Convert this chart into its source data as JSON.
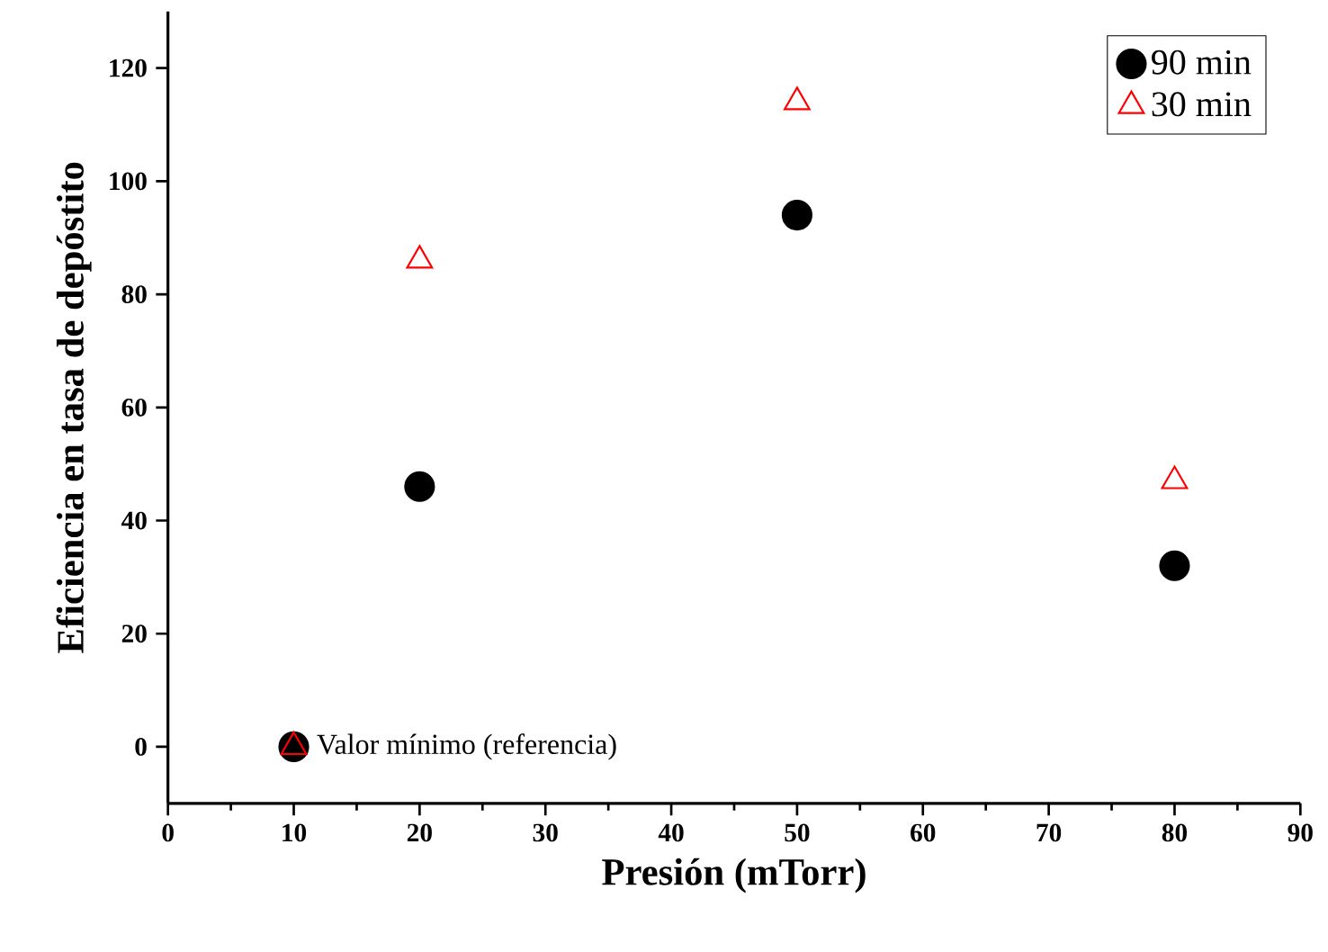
{
  "chart_data": {
    "type": "scatter",
    "xlabel": "Presión (mTorr)",
    "ylabel": "Eficiencia en tasa de depóstito",
    "x": [
      10,
      20,
      50,
      80
    ],
    "series": [
      {
        "name": "90 min",
        "color": "#000000",
        "marker": "circle",
        "values": [
          0,
          46,
          94,
          32
        ]
      },
      {
        "name": "30 min",
        "color": "#ff0000",
        "marker": "triangle",
        "values": [
          0,
          86,
          114,
          47
        ]
      }
    ],
    "xlim": [
      0,
      90
    ],
    "xticks": [
      0,
      10,
      20,
      30,
      40,
      50,
      60,
      70,
      80,
      90
    ],
    "ylim": [
      -10,
      130
    ],
    "yticks": [
      0,
      20,
      40,
      60,
      80,
      100,
      120
    ],
    "annotations": [
      {
        "text": "Valor mínimo (referencia)",
        "x": 10,
        "y": 0
      }
    ],
    "legend": "top right",
    "grid": false
  }
}
